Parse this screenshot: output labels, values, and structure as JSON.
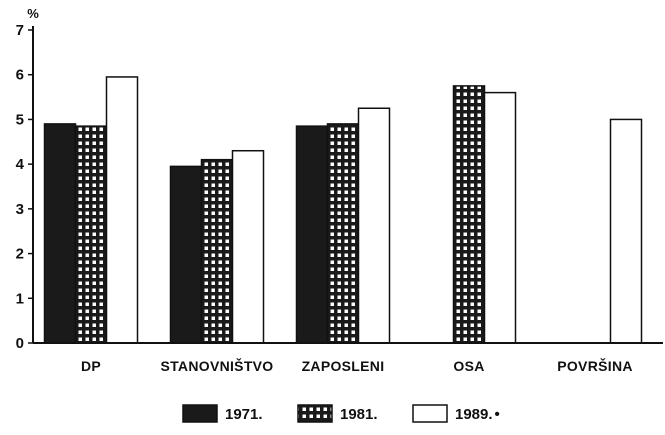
{
  "chart_data": {
    "type": "bar",
    "y_unit": "%",
    "ylim": [
      0,
      7
    ],
    "y_ticks": [
      0,
      1,
      2,
      3,
      4,
      5,
      6,
      7
    ],
    "grid": false,
    "legend_position": "bottom",
    "categories": [
      "DP",
      "STANOVNIŠTVO",
      "ZAPOSLENI",
      "OSA",
      "POVRŠINA"
    ],
    "series": [
      {
        "name": "1971.",
        "pattern": "solid-black",
        "values": [
          4.9,
          3.95,
          4.85,
          null,
          null
        ]
      },
      {
        "name": "1981.",
        "pattern": "checkered",
        "values": [
          4.85,
          4.1,
          4.9,
          5.75,
          null
        ]
      },
      {
        "name": "1989.",
        "marker_suffix": "•",
        "pattern": "white",
        "values": [
          5.95,
          4.3,
          5.25,
          5.6,
          5.0
        ]
      }
    ]
  }
}
